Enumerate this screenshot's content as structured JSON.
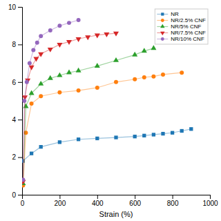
{
  "chart_data": {
    "type": "line",
    "title": "",
    "xlabel": "Strain (%)",
    "ylabel": "",
    "xlim": [
      0,
      1000
    ],
    "ylim": [
      0,
      10
    ],
    "xticks": [
      0,
      200,
      400,
      600,
      800,
      1000
    ],
    "yticks": [
      0,
      2,
      4,
      6,
      8,
      10
    ],
    "grid": false,
    "legend": "upper right",
    "series": [
      {
        "name": "NR",
        "marker": "square",
        "x": [
          5,
          50,
          100,
          200,
          300,
          400,
          500,
          600,
          650,
          700,
          750,
          800,
          850,
          900
        ],
        "values": [
          1.8,
          2.2,
          2.55,
          2.8,
          2.95,
          3.0,
          3.05,
          3.1,
          3.15,
          3.2,
          3.25,
          3.3,
          3.4,
          3.5
        ]
      },
      {
        "name": "NR/2.5% CNF",
        "marker": "circle",
        "x": [
          5,
          20,
          50,
          100,
          200,
          300,
          400,
          500,
          600,
          650,
          700,
          750,
          850
        ],
        "values": [
          0.5,
          3.3,
          4.85,
          5.25,
          5.45,
          5.55,
          5.7,
          6.0,
          6.15,
          6.25,
          6.3,
          6.4,
          6.5
        ]
      },
      {
        "name": "NR/5% CNF",
        "marker": "triangle-up",
        "x": [
          5,
          20,
          50,
          100,
          150,
          200,
          250,
          300,
          400,
          500,
          600,
          650,
          700
        ],
        "values": [
          0.6,
          4.7,
          5.4,
          5.9,
          6.2,
          6.35,
          6.5,
          6.6,
          6.85,
          7.15,
          7.45,
          7.65,
          7.8
        ]
      },
      {
        "name": "NR/7.5% CNF",
        "marker": "triangle-down",
        "x": [
          5,
          15,
          30,
          50,
          75,
          100,
          150,
          200,
          250,
          300,
          350,
          400,
          450,
          500
        ],
        "values": [
          0.7,
          5.2,
          6.1,
          6.8,
          7.25,
          7.5,
          7.75,
          8.0,
          8.15,
          8.3,
          8.4,
          8.5,
          8.55,
          8.6
        ]
      },
      {
        "name": "NR/10% CNF",
        "marker": "circle",
        "x": [
          5,
          12,
          25,
          40,
          60,
          80,
          100,
          150,
          200,
          250,
          300
        ],
        "values": [
          0.8,
          5.0,
          6.0,
          7.0,
          7.7,
          8.1,
          8.45,
          8.75,
          9.0,
          9.15,
          9.3
        ]
      }
    ]
  }
}
